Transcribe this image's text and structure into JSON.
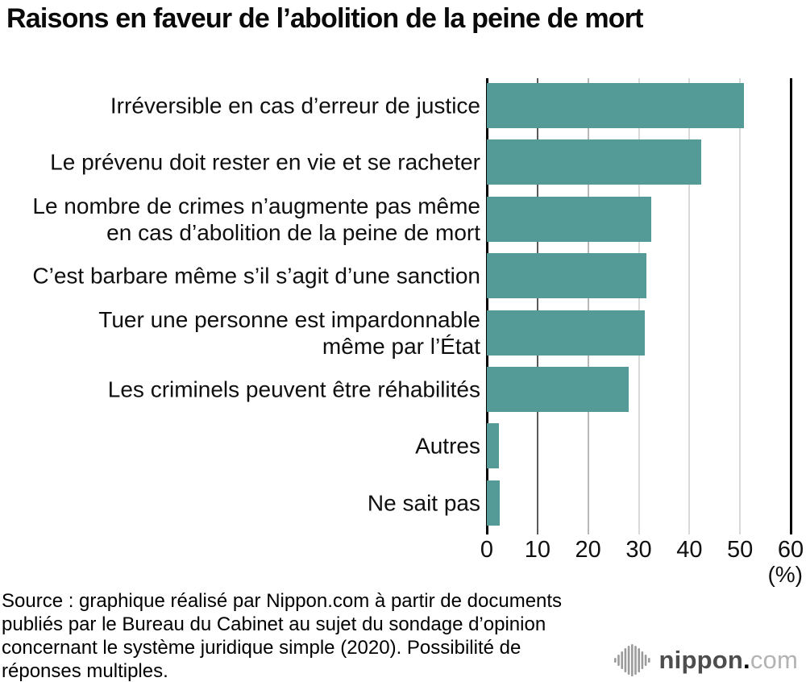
{
  "title": "Raisons en faveur de l’abolition de la peine de mort",
  "chart_data": {
    "type": "bar",
    "orientation": "horizontal",
    "title": "Raisons en faveur de l’abolition de la peine de mort",
    "categories": [
      "Irréversible en cas d’erreur de justice",
      "Le prévenu doit rester en vie et se racheter",
      "Le nombre de crimes n’augmente pas même\nen cas d’abolition de la peine de mort",
      "C’est barbare même s’il s’agit d’une sanction",
      "Tuer une personne est impardonnable\nmême par l’État",
      "Les criminels peuvent être réhabilités",
      "Autres",
      "Ne sait pas"
    ],
    "values": [
      50.7,
      42.3,
      32.4,
      31.5,
      31.2,
      28.0,
      2.4,
      2.5
    ],
    "xlim": [
      0,
      60
    ],
    "x_ticks": [
      0,
      10,
      20,
      30,
      40,
      50,
      60
    ],
    "unit_label": "(%)",
    "xlabel": "",
    "ylabel": "",
    "grid": true,
    "legend": "none",
    "bar_color": "#549a97"
  },
  "colors": {
    "bar": "#549a97",
    "axis": "#000000",
    "grid_dark": "#5a5a5a",
    "grid_medium": "#b7b7b7",
    "grid_light": "#d9d9d9",
    "text": "#0f0f0f",
    "logo_nippon": "#4d4d4d",
    "logo_dot": "#e60012",
    "logo_com": "#b3b3b3",
    "logo_icon": "#9b9b9b"
  },
  "source": {
    "lines": [
      "Source : graphique réalisé par Nippon.com à partir de documents",
      "publiés par le Bureau du Cabinet au sujet du sondage d’opinion",
      "concernant le système juridique simple (2020). Possibilité de",
      "réponses multiples."
    ]
  },
  "logo": {
    "icon": "soundwave-bars-icon",
    "nippon": "nippon",
    "dot": ".",
    "com": "com"
  }
}
